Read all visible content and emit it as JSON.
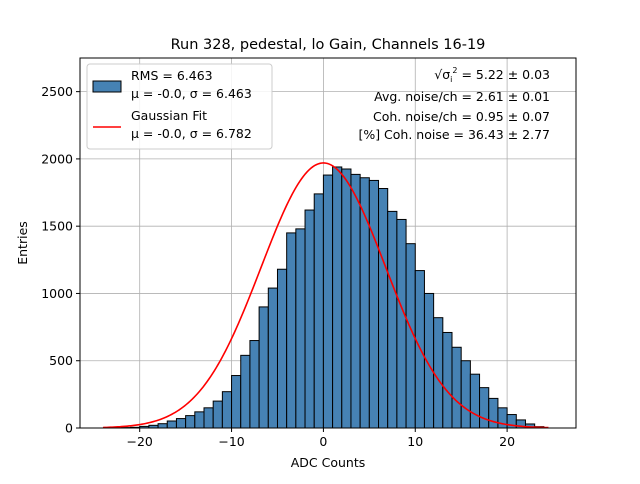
{
  "chart_data": {
    "type": "bar",
    "title": "Run 328, pedestal, lo Gain, Channels 16-19",
    "xlabel": "ADC Counts",
    "ylabel": "Entries",
    "xlim": [
      -26.5,
      27.5
    ],
    "ylim": [
      0,
      2750
    ],
    "x_ticks": [
      -20,
      -10,
      0,
      10,
      20
    ],
    "y_ticks": [
      0,
      500,
      1000,
      1500,
      2000,
      2500
    ],
    "grid": true,
    "legend_position": "top-left",
    "bin_width": 1,
    "bin_starts": [
      -23,
      -22,
      -21,
      -20,
      -19,
      -18,
      -17,
      -16,
      -15,
      -14,
      -13,
      -12,
      -11,
      -10,
      -9,
      -8,
      -7,
      -6,
      -5,
      -4,
      -3,
      -2,
      -1,
      0,
      1,
      2,
      3,
      4,
      5,
      6,
      7,
      8,
      9,
      10,
      11,
      12,
      13,
      14,
      15,
      16,
      17,
      18,
      19,
      20,
      21,
      22,
      23
    ],
    "series": [
      {
        "name": "RMS = 6.463",
        "name_line2": "μ = -0.0, σ = 6.463",
        "color": "#4682b4",
        "edge_color": "#000000",
        "values": [
          1,
          3,
          5,
          12,
          20,
          32,
          52,
          70,
          92,
          120,
          150,
          200,
          270,
          390,
          540,
          650,
          900,
          1040,
          1180,
          1450,
          1480,
          1620,
          1740,
          1880,
          1940,
          1925,
          1885,
          1860,
          1840,
          1780,
          1610,
          1550,
          1370,
          1170,
          1000,
          820,
          710,
          600,
          500,
          400,
          300,
          220,
          150,
          100,
          60,
          30,
          10
        ]
      },
      {
        "name": "Gaussian Fit",
        "name_line2": "μ = -0.0, σ = 6.782",
        "color": "#ff0000",
        "type": "line",
        "mu": 0.0,
        "sigma": 6.782,
        "amplitude": 1970,
        "x_range": [
          -24,
          24.5
        ]
      }
    ],
    "stats_annotations": [
      {
        "prefix": "√σ",
        "sub": "i",
        "sup": "2",
        "text": " = 5.22 ± 0.03"
      },
      {
        "text": "Avg. noise/ch = 2.61 ± 0.01"
      },
      {
        "text": "Coh. noise/ch = 0.95 ± 0.07"
      },
      {
        "text": "[%] Coh. noise = 36.43 ± 2.77"
      }
    ]
  }
}
